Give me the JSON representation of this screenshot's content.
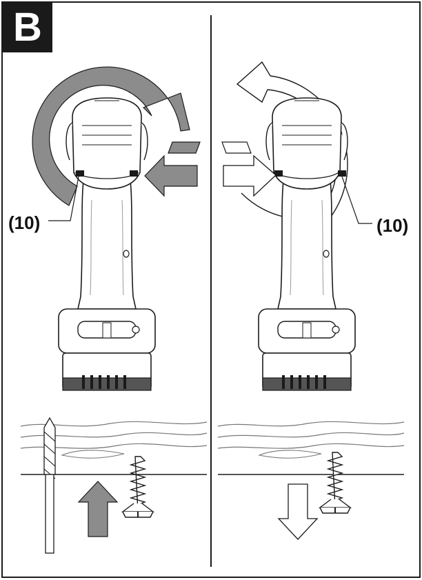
{
  "figure": {
    "label": "B",
    "left_panel": {
      "callout": "(10)"
    },
    "right_panel": {
      "callout": "(10)"
    }
  },
  "colors": {
    "arrow_fill": "#8c8c8c",
    "outline": "#1a1a1a",
    "drill_body": "#ffffff",
    "wood_grain": "#777777"
  },
  "icons": [
    "drill-icon",
    "screw-icon",
    "drill-bit-icon",
    "rotation-arrow-icon",
    "direction-arrow-icon"
  ]
}
